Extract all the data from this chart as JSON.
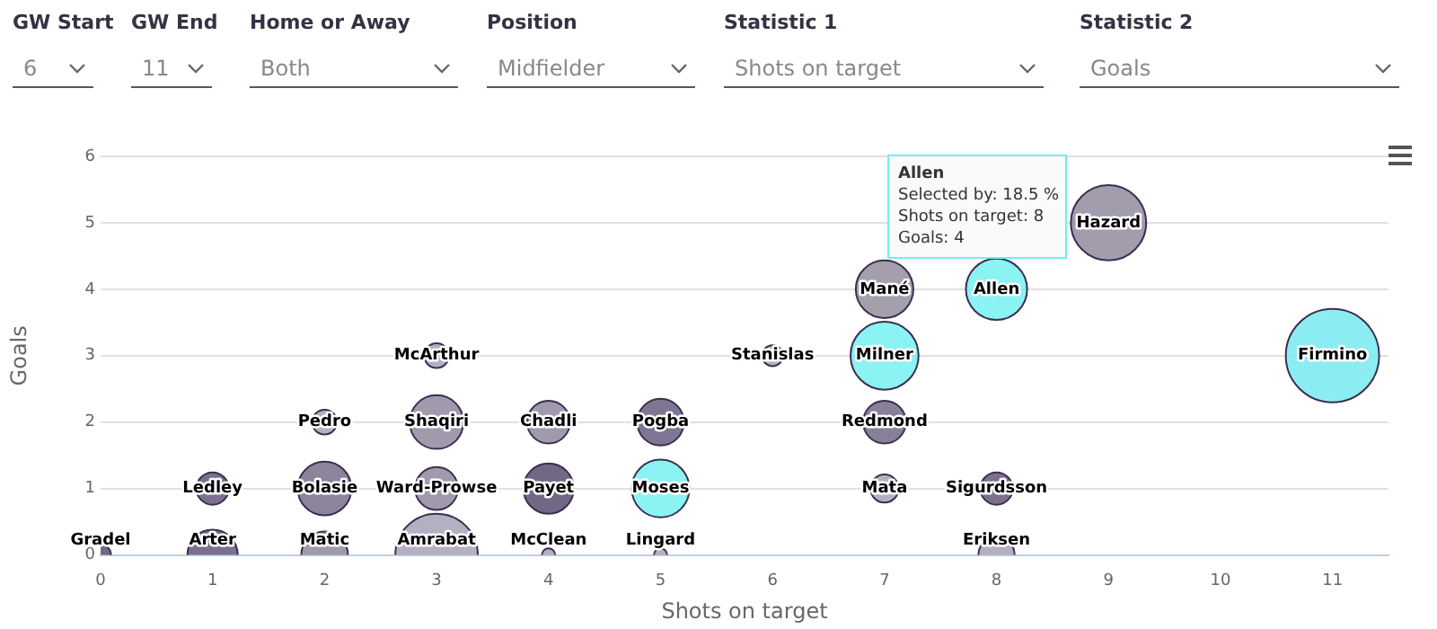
{
  "chart_data": {
    "type": "bubble",
    "xlabel": "Shots on target",
    "ylabel": "Goals",
    "xlim": [
      0,
      11.5
    ],
    "xticks": [
      0,
      1,
      2,
      3,
      4,
      5,
      6,
      7,
      8,
      9,
      10,
      11
    ],
    "ylim": [
      0,
      6
    ],
    "yticks": [
      0,
      1,
      2,
      3,
      4,
      5,
      6
    ],
    "grid": "y",
    "legend": false,
    "annotations": [
      "GW Start",
      "6",
      "GW End",
      "11",
      "Home or Away",
      "Both",
      "Position",
      "Midfielder",
      "Statistic 1",
      "Shots on target",
      "Statistic 2",
      "Goals",
      "Allen\nSelected by: 18.5 %\nShots on target: 8\nGoals: 4"
    ],
    "series": [
      {
        "name": "Gradel",
        "color": "#4d4266",
        "x": [
          0
        ],
        "values": [
          0
        ],
        "sizes": [
          0.05
        ]
      },
      {
        "name": "Arter",
        "color": "#5a4e72",
        "x": [
          1
        ],
        "values": [
          0
        ],
        "sizes": [
          0.29
        ]
      },
      {
        "name": "Matic",
        "color": "#8a8199",
        "x": [
          2
        ],
        "values": [
          0
        ],
        "sizes": [
          0.25
        ]
      },
      {
        "name": "Amrabat",
        "color": "#a39bb3",
        "x": [
          3
        ],
        "values": [
          0
        ],
        "sizes": [
          0.78
        ]
      },
      {
        "name": "McClean",
        "color": "#a39bb3",
        "x": [
          4
        ],
        "values": [
          0
        ],
        "sizes": [
          0.02
        ]
      },
      {
        "name": "Lingard",
        "color": "#a39bb3",
        "x": [
          5
        ],
        "values": [
          0
        ],
        "sizes": [
          0.02
        ]
      },
      {
        "name": "Eriksen",
        "color": "#a39bb3",
        "x": [
          8
        ],
        "values": [
          0
        ],
        "sizes": [
          0.15
        ]
      },
      {
        "name": "Ledley",
        "color": "#5a4e72",
        "x": [
          1
        ],
        "values": [
          1
        ],
        "sizes": [
          0.12
        ]
      },
      {
        "name": "Bolasie",
        "color": "#6f6585",
        "x": [
          2
        ],
        "values": [
          1
        ],
        "sizes": [
          0.33
        ]
      },
      {
        "name": "Ward-Prowse",
        "color": "#8a8199",
        "x": [
          3
        ],
        "values": [
          1
        ],
        "sizes": [
          0.21
        ]
      },
      {
        "name": "Payet",
        "color": "#4d4266",
        "x": [
          4
        ],
        "values": [
          1
        ],
        "sizes": [
          0.29
        ]
      },
      {
        "name": "Moses",
        "color": "#6ef0f0",
        "x": [
          5
        ],
        "values": [
          1
        ],
        "sizes": [
          0.38
        ]
      },
      {
        "name": "Mata",
        "color": "#a39bb3",
        "x": [
          7
        ],
        "values": [
          1
        ],
        "sizes": [
          0.09
        ]
      },
      {
        "name": "Sigurdsson",
        "color": "#5a4e72",
        "x": [
          8
        ],
        "values": [
          1
        ],
        "sizes": [
          0.12
        ]
      },
      {
        "name": "Pedro",
        "color": "#a39bb3",
        "x": [
          2
        ],
        "values": [
          2
        ],
        "sizes": [
          0.07
        ]
      },
      {
        "name": "Shaqiri",
        "color": "#8a8199",
        "x": [
          3
        ],
        "values": [
          2
        ],
        "sizes": [
          0.33
        ]
      },
      {
        "name": "Chadli",
        "color": "#8a8199",
        "x": [
          4
        ],
        "values": [
          2
        ],
        "sizes": [
          0.21
        ]
      },
      {
        "name": "Pogba",
        "color": "#5f5478",
        "x": [
          5
        ],
        "values": [
          2
        ],
        "sizes": [
          0.25
        ]
      },
      {
        "name": "Redmond",
        "color": "#6a5f80",
        "x": [
          7
        ],
        "values": [
          2
        ],
        "sizes": [
          0.21
        ]
      },
      {
        "name": "McArthur",
        "color": "#a39bb3",
        "x": [
          3
        ],
        "values": [
          3
        ],
        "sizes": [
          0.07
        ]
      },
      {
        "name": "Stanislas",
        "color": "#a39bb3",
        "x": [
          6
        ],
        "values": [
          3
        ],
        "sizes": [
          0.05
        ]
      },
      {
        "name": "Milner",
        "color": "#6ef0f0",
        "x": [
          7
        ],
        "values": [
          3
        ],
        "sizes": [
          0.53
        ]
      },
      {
        "name": "Firmino",
        "color": "#6ee8ee",
        "x": [
          11
        ],
        "values": [
          3
        ],
        "sizes": [
          1
        ]
      },
      {
        "name": "Mané",
        "color": "#8f8699",
        "x": [
          7
        ],
        "values": [
          4
        ],
        "sizes": [
          0.38
        ]
      },
      {
        "name": "Allen",
        "color": "#6ef0f0",
        "x": [
          8
        ],
        "values": [
          4
        ],
        "sizes": [
          0.43
        ]
      },
      {
        "name": "Hazard",
        "color": "#8c8399",
        "x": [
          9
        ],
        "values": [
          5
        ],
        "sizes": [
          0.65
        ]
      }
    ]
  }
}
